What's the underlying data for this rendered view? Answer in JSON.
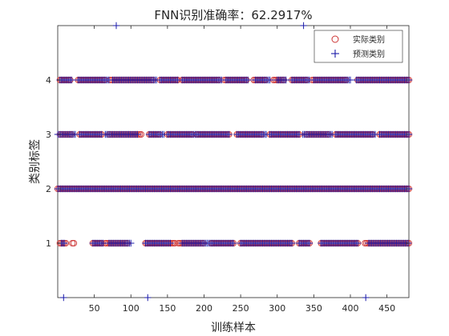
{
  "chart_data": {
    "type": "scatter",
    "title": "FNN识别准确率：62.2917%",
    "xlabel": "训练样本",
    "ylabel": "类别标签",
    "xlim": [
      0,
      480
    ],
    "ylim": [
      0,
      5
    ],
    "xticks": [
      50,
      100,
      150,
      200,
      250,
      300,
      350,
      400,
      450
    ],
    "yticks": [
      1,
      2,
      3,
      4
    ],
    "grid": false,
    "legend_position": "top-right",
    "series": [
      {
        "name": "实际类别",
        "marker": "circle",
        "color": "#cc3333",
        "points": [
          {
            "y": 4,
            "x_ranges": [
              [
                3,
                18
              ],
              [
                28,
                65
              ],
              [
                72,
                130
              ],
              [
                140,
                165
              ],
              [
                170,
                220
              ],
              [
                228,
                258
              ],
              [
                268,
                285
              ],
              [
                295,
                310
              ],
              [
                320,
                340
              ],
              [
                348,
                395
              ],
              [
                410,
                470
              ],
              [
                472,
                480
              ]
            ]
          },
          {
            "y": 3,
            "x_ranges": [
              [
                3,
                20
              ],
              [
                30,
                60
              ],
              [
                70,
                115
              ],
              [
                125,
                140
              ],
              [
                150,
                185
              ],
              [
                190,
                235
              ],
              [
                245,
                280
              ],
              [
                290,
                330
              ],
              [
                340,
                370
              ],
              [
                380,
                430
              ],
              [
                440,
                480
              ]
            ]
          },
          {
            "y": 2,
            "x_ranges": [
              [
                0,
                480
              ]
            ]
          },
          {
            "y": 1,
            "x_ranges": [
              [
                3,
                12
              ],
              [
                20,
                22
              ],
              [
                48,
                60
              ],
              [
                65,
                95
              ],
              [
                120,
                160
              ],
              [
                165,
                200
              ],
              [
                210,
                240
              ],
              [
                250,
                320
              ],
              [
                330,
                345
              ],
              [
                360,
                410
              ],
              [
                420,
                480
              ]
            ]
          }
        ]
      },
      {
        "name": "预测类别",
        "marker": "plus",
        "color": "#1a1aa8",
        "points": [
          {
            "y": 4,
            "x_ranges": [
              [
                3,
                20
              ],
              [
                28,
                70
              ],
              [
                75,
                135
              ],
              [
                140,
                165
              ],
              [
                170,
                225
              ],
              [
                230,
                260
              ],
              [
                270,
                290
              ],
              [
                300,
                312
              ],
              [
                320,
                345
              ],
              [
                350,
                400
              ],
              [
                408,
                475
              ],
              [
                476,
                480
              ]
            ]
          },
          {
            "y": 3,
            "x_ranges": [
              [
                0,
                25
              ],
              [
                30,
                60
              ],
              [
                65,
                110
              ],
              [
                125,
                145
              ],
              [
                150,
                235
              ],
              [
                245,
                285
              ],
              [
                290,
                330
              ],
              [
                335,
                375
              ],
              [
                380,
                435
              ],
              [
                440,
                480
              ]
            ]
          },
          {
            "y": 2,
            "x_ranges": [
              [
                0,
                480
              ]
            ]
          },
          {
            "y": 1,
            "x_ranges": [
              [
                5,
                10
              ],
              [
                48,
                62
              ],
              [
                70,
                100
              ],
              [
                120,
                155
              ],
              [
                170,
                240
              ],
              [
                250,
                320
              ],
              [
                330,
                345
              ],
              [
                360,
                410
              ],
              [
                425,
                480
              ]
            ]
          },
          {
            "y": 0,
            "x_values": [
              8,
              123,
              421
            ]
          },
          {
            "y": 5,
            "x_values": [
              80,
              336
            ]
          }
        ]
      }
    ]
  }
}
